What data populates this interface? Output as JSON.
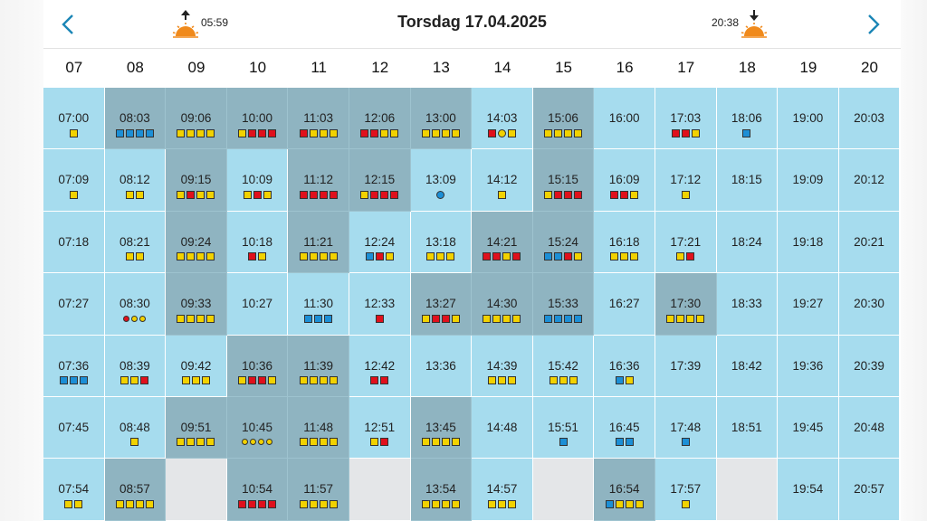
{
  "header": {
    "title": "Torsdag 17.04.2025",
    "sunrise": "05:59",
    "sunset": "20:38",
    "icon_prev": "chevron-left-icon",
    "icon_next": "chevron-right-icon"
  },
  "colors": {
    "light_cell": "#a6dcee",
    "dark_cell": "#8fb4c1",
    "empty_cell": "#e4e6e8",
    "yellow": "#f2d200",
    "red": "#e0101c",
    "blue": "#1c8fd6",
    "accent": "#1b86b6"
  },
  "hours": [
    "07",
    "08",
    "09",
    "10",
    "11",
    "12",
    "13",
    "14",
    "15",
    "16",
    "17",
    "18",
    "19",
    "20"
  ],
  "columns": [
    [
      {
        "time": "07:00",
        "shade": "light",
        "marks": "y"
      },
      {
        "time": "07:09",
        "shade": "light",
        "marks": "y"
      },
      {
        "time": "07:18",
        "shade": "light",
        "marks": ""
      },
      {
        "time": "07:27",
        "shade": "light",
        "marks": ""
      },
      {
        "time": "07:36",
        "shade": "light",
        "marks": "bbb"
      },
      {
        "time": "07:45",
        "shade": "light",
        "marks": ""
      },
      {
        "time": "07:54",
        "shade": "light",
        "marks": "yy"
      }
    ],
    [
      {
        "time": "08:03",
        "shade": "dark",
        "marks": "bbbb"
      },
      {
        "time": "08:12",
        "shade": "light",
        "marks": "yy"
      },
      {
        "time": "08:21",
        "shade": "light",
        "marks": "yy"
      },
      {
        "time": "08:30",
        "shade": "light",
        "marks": "RYY"
      },
      {
        "time": "08:39",
        "shade": "light",
        "marks": "yyr"
      },
      {
        "time": "08:48",
        "shade": "light",
        "marks": "y"
      },
      {
        "time": "08:57",
        "shade": "dark",
        "marks": "yyyy"
      }
    ],
    [
      {
        "time": "09:06",
        "shade": "dark",
        "marks": "yyyy"
      },
      {
        "time": "09:15",
        "shade": "dark",
        "marks": "yryy"
      },
      {
        "time": "09:24",
        "shade": "dark",
        "marks": "yyyy"
      },
      {
        "time": "09:33",
        "shade": "dark",
        "marks": "yyyy"
      },
      {
        "time": "09:42",
        "shade": "light",
        "marks": "yyy"
      },
      {
        "time": "09:51",
        "shade": "dark",
        "marks": "yyyy"
      },
      {
        "time": "",
        "shade": "empty",
        "marks": ""
      }
    ],
    [
      {
        "time": "10:00",
        "shade": "dark",
        "marks": "yrrr"
      },
      {
        "time": "10:09",
        "shade": "light",
        "marks": "yry"
      },
      {
        "time": "10:18",
        "shade": "light",
        "marks": "ry"
      },
      {
        "time": "10:27",
        "shade": "light",
        "marks": ""
      },
      {
        "time": "10:36",
        "shade": "dark",
        "marks": "yrry"
      },
      {
        "time": "10:45",
        "shade": "dark",
        "marks": "YYYY"
      },
      {
        "time": "10:54",
        "shade": "dark",
        "marks": "rrrr"
      }
    ],
    [
      {
        "time": "11:03",
        "shade": "dark",
        "marks": "ryyy"
      },
      {
        "time": "11:12",
        "shade": "dark",
        "marks": "rrrr"
      },
      {
        "time": "11:21",
        "shade": "dark",
        "marks": "yyyy"
      },
      {
        "time": "11:30",
        "shade": "light",
        "marks": "bbb"
      },
      {
        "time": "11:39",
        "shade": "dark",
        "marks": "yyyy"
      },
      {
        "time": "11:48",
        "shade": "dark",
        "marks": "yyyy"
      },
      {
        "time": "11:57",
        "shade": "dark",
        "marks": "yyyy"
      }
    ],
    [
      {
        "time": "12:06",
        "shade": "dark",
        "marks": "rryy"
      },
      {
        "time": "12:15",
        "shade": "dark",
        "marks": "yrrr"
      },
      {
        "time": "12:24",
        "shade": "light",
        "marks": "bry"
      },
      {
        "time": "12:33",
        "shade": "light",
        "marks": "r"
      },
      {
        "time": "12:42",
        "shade": "light",
        "marks": "rr"
      },
      {
        "time": "12:51",
        "shade": "light",
        "marks": "yr"
      },
      {
        "time": "",
        "shade": "empty",
        "marks": ""
      }
    ],
    [
      {
        "time": "13:00",
        "shade": "dark",
        "marks": "yyyy"
      },
      {
        "time": "13:09",
        "shade": "light",
        "marks": "B"
      },
      {
        "time": "13:18",
        "shade": "light",
        "marks": "yyy"
      },
      {
        "time": "13:27",
        "shade": "dark",
        "marks": "yrry"
      },
      {
        "time": "13:36",
        "shade": "light",
        "marks": ""
      },
      {
        "time": "13:45",
        "shade": "dark",
        "marks": "yyyy"
      },
      {
        "time": "13:54",
        "shade": "dark",
        "marks": "yyyy"
      }
    ],
    [
      {
        "time": "14:03",
        "shade": "light",
        "marks": "rYy"
      },
      {
        "time": "14:12",
        "shade": "light",
        "marks": "y"
      },
      {
        "time": "14:21",
        "shade": "dark",
        "marks": "rryr"
      },
      {
        "time": "14:30",
        "shade": "dark",
        "marks": "yyyy"
      },
      {
        "time": "14:39",
        "shade": "light",
        "marks": "yyy"
      },
      {
        "time": "14:48",
        "shade": "light",
        "marks": ""
      },
      {
        "time": "14:57",
        "shade": "light",
        "marks": "yyy"
      }
    ],
    [
      {
        "time": "15:06",
        "shade": "dark",
        "marks": "yyyy"
      },
      {
        "time": "15:15",
        "shade": "dark",
        "marks": "yrrr"
      },
      {
        "time": "15:24",
        "shade": "dark",
        "marks": "bbry"
      },
      {
        "time": "15:33",
        "shade": "dark",
        "marks": "bbbb"
      },
      {
        "time": "15:42",
        "shade": "light",
        "marks": "yyy"
      },
      {
        "time": "15:51",
        "shade": "light",
        "marks": "b"
      },
      {
        "time": "",
        "shade": "empty",
        "marks": ""
      }
    ],
    [
      {
        "time": "16:00",
        "shade": "light",
        "marks": ""
      },
      {
        "time": "16:09",
        "shade": "light",
        "marks": "rry"
      },
      {
        "time": "16:18",
        "shade": "light",
        "marks": "yyy"
      },
      {
        "time": "16:27",
        "shade": "light",
        "marks": ""
      },
      {
        "time": "16:36",
        "shade": "light",
        "marks": "by"
      },
      {
        "time": "16:45",
        "shade": "light",
        "marks": "bb"
      },
      {
        "time": "16:54",
        "shade": "dark",
        "marks": "byyy"
      }
    ],
    [
      {
        "time": "17:03",
        "shade": "light",
        "marks": "rry"
      },
      {
        "time": "17:12",
        "shade": "light",
        "marks": "y"
      },
      {
        "time": "17:21",
        "shade": "light",
        "marks": "yr"
      },
      {
        "time": "17:30",
        "shade": "dark",
        "marks": "yyyy"
      },
      {
        "time": "17:39",
        "shade": "light",
        "marks": ""
      },
      {
        "time": "17:48",
        "shade": "light",
        "marks": "b"
      },
      {
        "time": "17:57",
        "shade": "light",
        "marks": "y"
      }
    ],
    [
      {
        "time": "18:06",
        "shade": "light",
        "marks": "b"
      },
      {
        "time": "18:15",
        "shade": "light",
        "marks": ""
      },
      {
        "time": "18:24",
        "shade": "light",
        "marks": ""
      },
      {
        "time": "18:33",
        "shade": "light",
        "marks": ""
      },
      {
        "time": "18:42",
        "shade": "light",
        "marks": ""
      },
      {
        "time": "18:51",
        "shade": "light",
        "marks": ""
      },
      {
        "time": "",
        "shade": "empty",
        "marks": ""
      }
    ],
    [
      {
        "time": "19:00",
        "shade": "light",
        "marks": ""
      },
      {
        "time": "19:09",
        "shade": "light",
        "marks": ""
      },
      {
        "time": "19:18",
        "shade": "light",
        "marks": ""
      },
      {
        "time": "19:27",
        "shade": "light",
        "marks": ""
      },
      {
        "time": "19:36",
        "shade": "light",
        "marks": ""
      },
      {
        "time": "19:45",
        "shade": "light",
        "marks": ""
      },
      {
        "time": "19:54",
        "shade": "light",
        "marks": ""
      }
    ],
    [
      {
        "time": "20:03",
        "shade": "light",
        "marks": ""
      },
      {
        "time": "20:12",
        "shade": "light",
        "marks": ""
      },
      {
        "time": "20:21",
        "shade": "light",
        "marks": ""
      },
      {
        "time": "20:30",
        "shade": "light",
        "marks": ""
      },
      {
        "time": "20:39",
        "shade": "light",
        "marks": ""
      },
      {
        "time": "20:48",
        "shade": "light",
        "marks": ""
      },
      {
        "time": "20:57",
        "shade": "light",
        "marks": ""
      }
    ]
  ]
}
